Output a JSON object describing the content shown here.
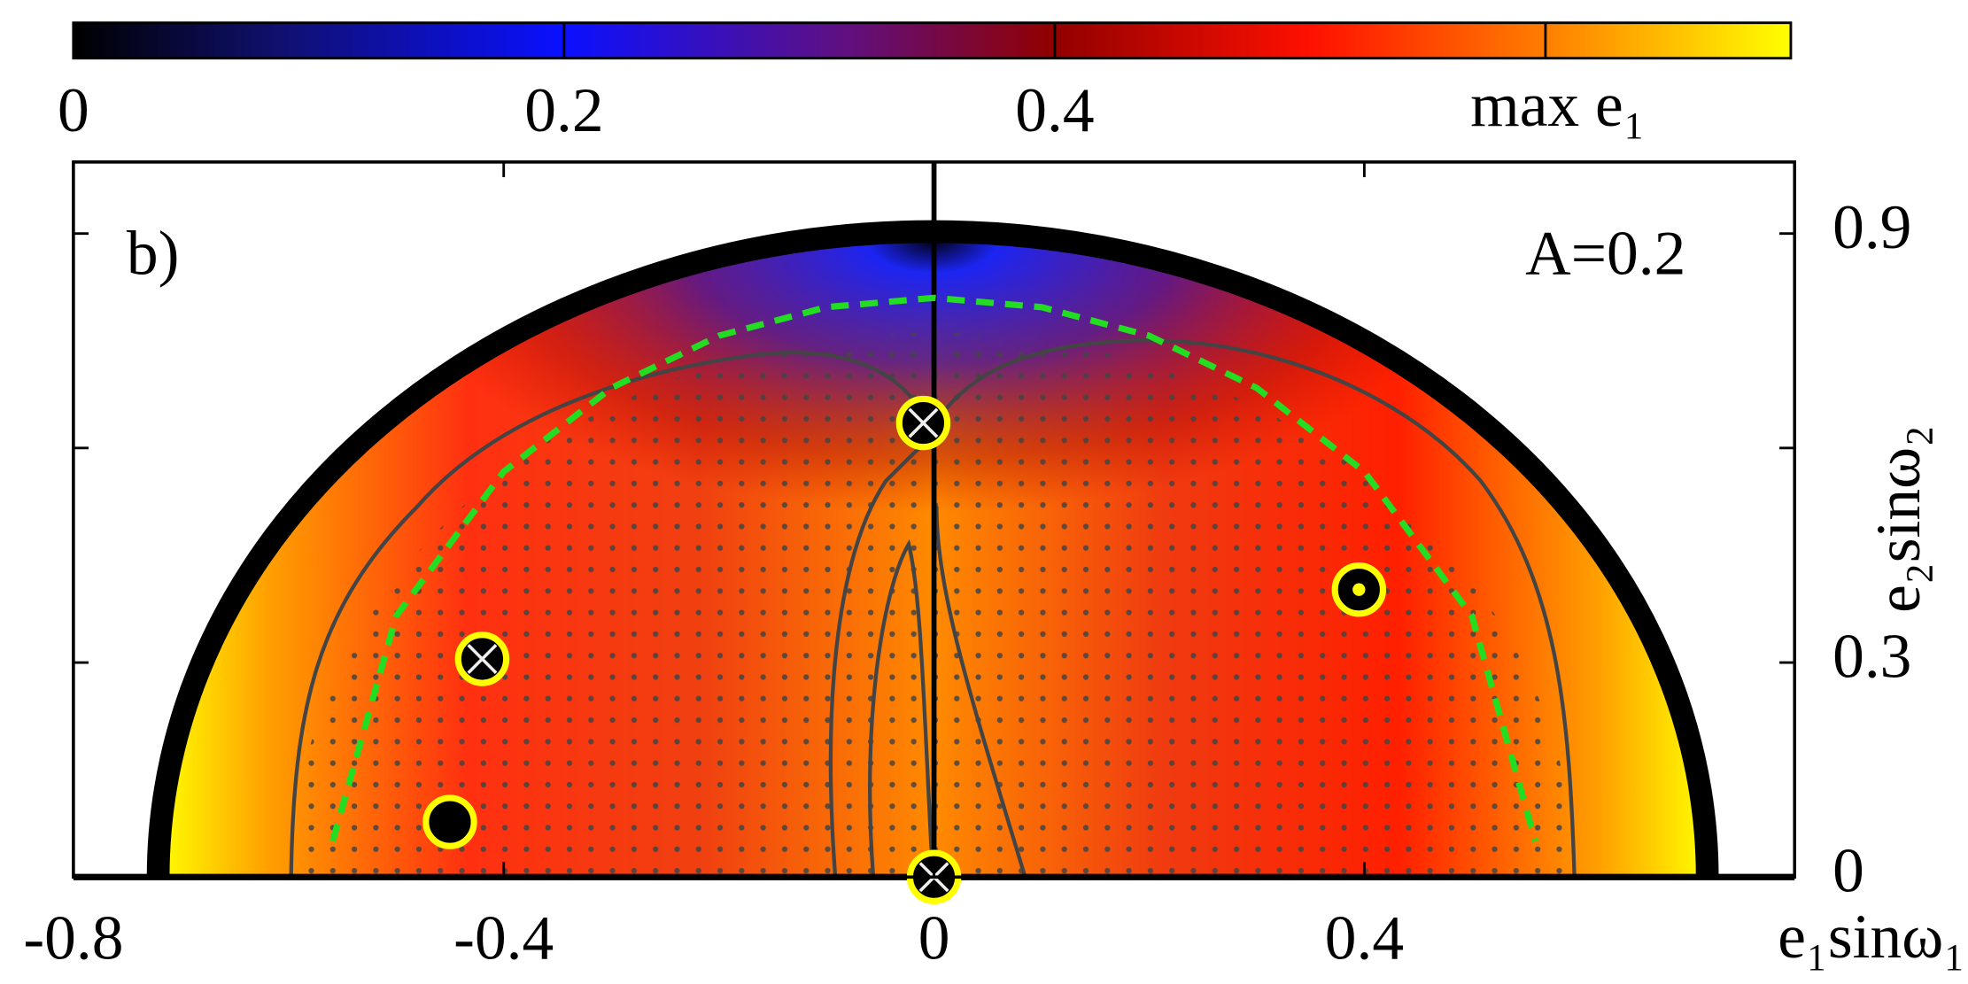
{
  "chart_data": {
    "type": "scatter",
    "panel_label": "b)",
    "annotation": "A=0.2",
    "xlabel": "e₁sinω₁",
    "ylabel": "e₂sinω₂",
    "colorbar_label": "max e₁",
    "xlim": [
      -0.8,
      0.8
    ],
    "ylim": [
      0,
      1.0
    ],
    "xticks": [
      -0.8,
      -0.4,
      0,
      0.4
    ],
    "yticks": [
      0,
      0.3,
      0.9
    ],
    "yticks_unlabeled": [
      0.6
    ],
    "clim": [
      0,
      0.7
    ],
    "cticks": [
      0,
      0.2,
      0.4
    ],
    "cticks_unlabeled": [
      0.6
    ],
    "points": {
      "x": [
        -0.42,
        -0.01,
        0,
        -0.45,
        0.395
      ],
      "y": [
        0.305,
        0.635,
        0,
        0.077,
        0.402
      ],
      "symbols": [
        "crossed",
        "crossed",
        "crossed",
        "filled",
        "dot"
      ]
    },
    "curve": {
      "color": "#22dd22",
      "x": [
        -0.559,
        -0.5,
        -0.4,
        -0.3,
        -0.2,
        -0.1,
        0,
        0.1,
        0.2,
        0.3,
        0.4,
        0.5,
        0.559
      ],
      "y": [
        0.05,
        0.365,
        0.567,
        0.684,
        0.757,
        0.797,
        0.81,
        0.797,
        0.757,
        0.684,
        0.567,
        0.365,
        0.05
      ]
    }
  }
}
